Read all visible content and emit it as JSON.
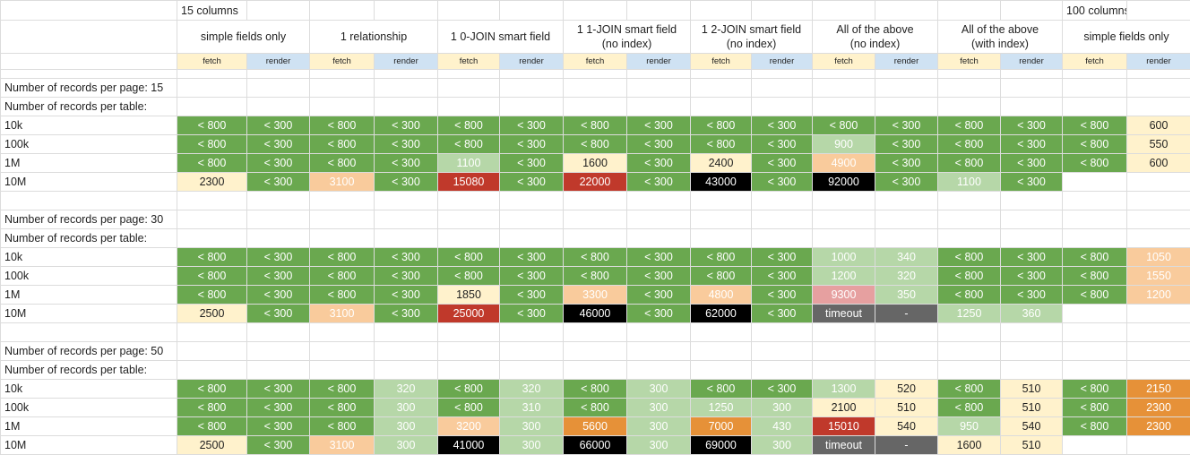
{
  "colors": {
    "dark_green": "#6aa84f",
    "light_green": "#b6d7a8",
    "pale_yellow": "#fff2cc",
    "light_orange": "#f9cb9c",
    "orange": "#e69138",
    "red": "#c0392b",
    "pink": "#e6a0a0",
    "black": "#000000",
    "gray": "#666666",
    "fetch_bg": "#fff2cc",
    "render_bg": "#cfe2f3"
  },
  "header": {
    "group1": "15 columns",
    "group2": "100 columns",
    "scenarios": [
      "simple fields only",
      "1 relationship",
      "1 0-JOIN smart field",
      "1 1-JOIN smart field\n(no index)",
      "1 2-JOIN smart field\n(no index)",
      "All of the above\n(no index)",
      "All of the above\n(with index)",
      "simple fields only"
    ],
    "fetch": "fetch",
    "render": "render"
  },
  "sections": [
    {
      "title": "Number of records per page: 15",
      "subtitle": "Number of records per table:",
      "rows": [
        {
          "label": "10k",
          "cells": [
            [
              "< 800",
              "G"
            ],
            [
              "< 300",
              "G"
            ],
            [
              "< 800",
              "G"
            ],
            [
              "< 300",
              "G"
            ],
            [
              "< 800",
              "G"
            ],
            [
              "< 300",
              "G"
            ],
            [
              "< 800",
              "G"
            ],
            [
              "< 300",
              "G"
            ],
            [
              "< 800",
              "G"
            ],
            [
              "< 300",
              "G"
            ],
            [
              "< 800",
              "G"
            ],
            [
              "< 300",
              "G"
            ],
            [
              "< 800",
              "G"
            ],
            [
              "< 300",
              "G"
            ],
            [
              "< 800",
              "G"
            ],
            [
              "600",
              "Y"
            ]
          ]
        },
        {
          "label": "100k",
          "cells": [
            [
              "< 800",
              "G"
            ],
            [
              "< 300",
              "G"
            ],
            [
              "< 800",
              "G"
            ],
            [
              "< 300",
              "G"
            ],
            [
              "< 800",
              "G"
            ],
            [
              "< 300",
              "G"
            ],
            [
              "< 800",
              "G"
            ],
            [
              "< 300",
              "G"
            ],
            [
              "< 800",
              "G"
            ],
            [
              "< 300",
              "G"
            ],
            [
              "900",
              "LG"
            ],
            [
              "< 300",
              "G"
            ],
            [
              "< 800",
              "G"
            ],
            [
              "< 300",
              "G"
            ],
            [
              "< 800",
              "G"
            ],
            [
              "550",
              "Y"
            ]
          ]
        },
        {
          "label": "1M",
          "cells": [
            [
              "< 800",
              "G"
            ],
            [
              "< 300",
              "G"
            ],
            [
              "< 800",
              "G"
            ],
            [
              "< 300",
              "G"
            ],
            [
              "1100",
              "LG"
            ],
            [
              "< 300",
              "G"
            ],
            [
              "1600",
              "Y"
            ],
            [
              "< 300",
              "G"
            ],
            [
              "2400",
              "Y"
            ],
            [
              "< 300",
              "G"
            ],
            [
              "4900",
              "LO"
            ],
            [
              "< 300",
              "G"
            ],
            [
              "< 800",
              "G"
            ],
            [
              "< 300",
              "G"
            ],
            [
              "< 800",
              "G"
            ],
            [
              "600",
              "Y"
            ]
          ]
        },
        {
          "label": "10M",
          "cells": [
            [
              "2300",
              "Y"
            ],
            [
              "< 300",
              "G"
            ],
            [
              "3100",
              "LO"
            ],
            [
              "< 300",
              "G"
            ],
            [
              "15080",
              "R"
            ],
            [
              "< 300",
              "G"
            ],
            [
              "22000",
              "R"
            ],
            [
              "< 300",
              "G"
            ],
            [
              "43000",
              "K"
            ],
            [
              "< 300",
              "G"
            ],
            [
              "92000",
              "K"
            ],
            [
              "< 300",
              "G"
            ],
            [
              "1100",
              "LG"
            ],
            [
              "< 300",
              "G"
            ],
            [
              "",
              ""
            ],
            [
              "",
              ""
            ]
          ]
        }
      ]
    },
    {
      "title": "Number of records per page: 30",
      "subtitle": "Number of records per table:",
      "rows": [
        {
          "label": "10k",
          "cells": [
            [
              "< 800",
              "G"
            ],
            [
              "< 300",
              "G"
            ],
            [
              "< 800",
              "G"
            ],
            [
              "< 300",
              "G"
            ],
            [
              "< 800",
              "G"
            ],
            [
              "< 300",
              "G"
            ],
            [
              "< 800",
              "G"
            ],
            [
              "< 300",
              "G"
            ],
            [
              "< 800",
              "G"
            ],
            [
              "< 300",
              "G"
            ],
            [
              "1000",
              "LG"
            ],
            [
              "340",
              "LG"
            ],
            [
              "< 800",
              "G"
            ],
            [
              "< 300",
              "G"
            ],
            [
              "< 800",
              "G"
            ],
            [
              "1050",
              "LO"
            ]
          ]
        },
        {
          "label": "100k",
          "cells": [
            [
              "< 800",
              "G"
            ],
            [
              "< 300",
              "G"
            ],
            [
              "< 800",
              "G"
            ],
            [
              "< 300",
              "G"
            ],
            [
              "< 800",
              "G"
            ],
            [
              "< 300",
              "G"
            ],
            [
              "< 800",
              "G"
            ],
            [
              "< 300",
              "G"
            ],
            [
              "< 800",
              "G"
            ],
            [
              "< 300",
              "G"
            ],
            [
              "1200",
              "LG"
            ],
            [
              "320",
              "LG"
            ],
            [
              "< 800",
              "G"
            ],
            [
              "< 300",
              "G"
            ],
            [
              "< 800",
              "G"
            ],
            [
              "1550",
              "LO"
            ]
          ]
        },
        {
          "label": "1M",
          "cells": [
            [
              "< 800",
              "G"
            ],
            [
              "< 300",
              "G"
            ],
            [
              "< 800",
              "G"
            ],
            [
              "< 300",
              "G"
            ],
            [
              "1850",
              "Y"
            ],
            [
              "< 300",
              "G"
            ],
            [
              "3300",
              "LO"
            ],
            [
              "< 300",
              "G"
            ],
            [
              "4800",
              "LO"
            ],
            [
              "< 300",
              "G"
            ],
            [
              "9300",
              "P"
            ],
            [
              "350",
              "LG"
            ],
            [
              "< 800",
              "G"
            ],
            [
              "< 300",
              "G"
            ],
            [
              "< 800",
              "G"
            ],
            [
              "1200",
              "LO"
            ]
          ]
        },
        {
          "label": "10M",
          "cells": [
            [
              "2500",
              "Y"
            ],
            [
              "< 300",
              "G"
            ],
            [
              "3100",
              "LO"
            ],
            [
              "< 300",
              "G"
            ],
            [
              "25000",
              "R"
            ],
            [
              "< 300",
              "G"
            ],
            [
              "46000",
              "K"
            ],
            [
              "< 300",
              "G"
            ],
            [
              "62000",
              "K"
            ],
            [
              "< 300",
              "G"
            ],
            [
              "timeout",
              "D"
            ],
            [
              "-",
              "D"
            ],
            [
              "1250",
              "LG"
            ],
            [
              "360",
              "LG"
            ],
            [
              "",
              ""
            ],
            [
              "",
              ""
            ]
          ]
        }
      ]
    },
    {
      "title": "Number of records per page: 50",
      "subtitle": "Number of records per table:",
      "rows": [
        {
          "label": "10k",
          "cells": [
            [
              "< 800",
              "G"
            ],
            [
              "< 300",
              "G"
            ],
            [
              "< 800",
              "G"
            ],
            [
              "320",
              "LG"
            ],
            [
              "< 800",
              "G"
            ],
            [
              "320",
              "LG"
            ],
            [
              "< 800",
              "G"
            ],
            [
              "300",
              "LG"
            ],
            [
              "< 800",
              "G"
            ],
            [
              "< 300",
              "G"
            ],
            [
              "1300",
              "LG"
            ],
            [
              "520",
              "Y"
            ],
            [
              "< 800",
              "G"
            ],
            [
              "510",
              "Y"
            ],
            [
              "< 800",
              "G"
            ],
            [
              "2150",
              "O"
            ]
          ]
        },
        {
          "label": "100k",
          "cells": [
            [
              "< 800",
              "G"
            ],
            [
              "< 300",
              "G"
            ],
            [
              "< 800",
              "G"
            ],
            [
              "300",
              "LG"
            ],
            [
              "< 800",
              "G"
            ],
            [
              "310",
              "LG"
            ],
            [
              "< 800",
              "G"
            ],
            [
              "300",
              "LG"
            ],
            [
              "1250",
              "LG"
            ],
            [
              "300",
              "LG"
            ],
            [
              "2100",
              "Y"
            ],
            [
              "510",
              "Y"
            ],
            [
              "< 800",
              "G"
            ],
            [
              "510",
              "Y"
            ],
            [
              "< 800",
              "G"
            ],
            [
              "2300",
              "O"
            ]
          ]
        },
        {
          "label": "1M",
          "cells": [
            [
              "< 800",
              "G"
            ],
            [
              "< 300",
              "G"
            ],
            [
              "< 800",
              "G"
            ],
            [
              "300",
              "LG"
            ],
            [
              "3200",
              "LO"
            ],
            [
              "300",
              "LG"
            ],
            [
              "5600",
              "O"
            ],
            [
              "300",
              "LG"
            ],
            [
              "7000",
              "O"
            ],
            [
              "430",
              "LG"
            ],
            [
              "15010",
              "R"
            ],
            [
              "540",
              "Y"
            ],
            [
              "950",
              "LG"
            ],
            [
              "540",
              "Y"
            ],
            [
              "< 800",
              "G"
            ],
            [
              "2300",
              "O"
            ]
          ]
        },
        {
          "label": "10M",
          "cells": [
            [
              "2500",
              "Y"
            ],
            [
              "< 300",
              "G"
            ],
            [
              "3100",
              "LO"
            ],
            [
              "300",
              "LG"
            ],
            [
              "41000",
              "K"
            ],
            [
              "300",
              "LG"
            ],
            [
              "66000",
              "K"
            ],
            [
              "300",
              "LG"
            ],
            [
              "69000",
              "K"
            ],
            [
              "300",
              "LG"
            ],
            [
              "timeout",
              "D"
            ],
            [
              "-",
              "D"
            ],
            [
              "1600",
              "Y"
            ],
            [
              "510",
              "Y"
            ],
            [
              "",
              ""
            ],
            [
              "",
              ""
            ]
          ]
        }
      ]
    }
  ]
}
